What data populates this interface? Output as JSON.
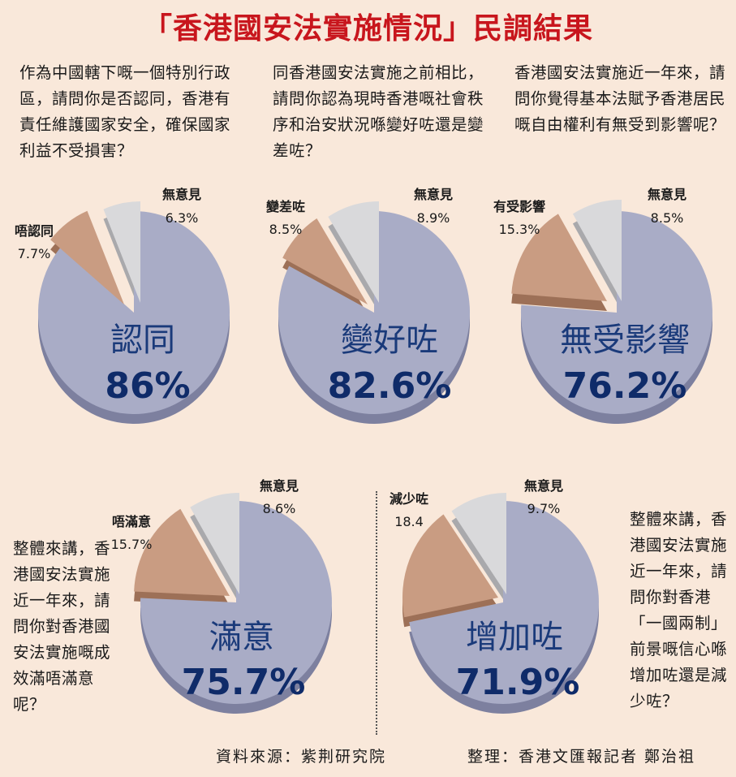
{
  "title": "「香港國安法實施情況」民調結果",
  "questions": {
    "q1": "作為中國轄下嘅一個特別行政區，請問你是否認同，香港有責任維護國家安全，確保國家利益不受損害？",
    "q2": "同香港國安法實施之前相比，請問你認為現時香港嘅社會秩序和治安狀況喺變好咗還是變差咗？",
    "q3": "香港國安法實施近一年來，請問你覺得基本法賦予香港居民嘅自由權利有無受到影響呢？",
    "q4": "整體來講，香港國安法實施近一年來，請問你對香港國安法實施嘅成效滿唔滿意呢？",
    "q5": "整體來講，香港國安法實施近一年來，請問你對香港「一國兩制」前景嘅信心喺增加咗還是減少咗？"
  },
  "colors": {
    "main": "#a9acc6",
    "main_side": "#7d809f",
    "secondary": "#c99c82",
    "secondary_side": "#9d7057",
    "neutral": "#d9d9db",
    "neutral_side": "#a9a9ac",
    "big_label": "#1a3a7a",
    "big_value": "#0f2b69",
    "title": "#c8161d"
  },
  "chart_data": [
    {
      "type": "pie",
      "slices": [
        {
          "label": "認同",
          "value": "86%"
        },
        {
          "label": "唔認同",
          "value": "7.7%"
        },
        {
          "label": "無意見",
          "value": "6.3%"
        }
      ]
    },
    {
      "type": "pie",
      "slices": [
        {
          "label": "變好咗",
          "value": "82.6%"
        },
        {
          "label": "變差咗",
          "value": "8.5%"
        },
        {
          "label": "無意見",
          "value": "8.9%"
        }
      ]
    },
    {
      "type": "pie",
      "slices": [
        {
          "label": "無受影響",
          "value": "76.2%"
        },
        {
          "label": "有受影響",
          "value": "15.3%"
        },
        {
          "label": "無意見",
          "value": "8.5%"
        }
      ]
    },
    {
      "type": "pie",
      "slices": [
        {
          "label": "滿意",
          "value": "75.7%"
        },
        {
          "label": "唔滿意",
          "value": "15.7%"
        },
        {
          "label": "無意見",
          "value": "8.6%"
        }
      ]
    },
    {
      "type": "pie",
      "slices": [
        {
          "label": "增加咗",
          "value": "71.9%"
        },
        {
          "label": "減少咗",
          "value": "18.4"
        },
        {
          "label": "無意見",
          "value": "9.7%"
        }
      ]
    }
  ],
  "footer": {
    "source": "資料來源：紫荆研究院",
    "editor": "整理：香港文匯報記者 鄭治祖"
  }
}
